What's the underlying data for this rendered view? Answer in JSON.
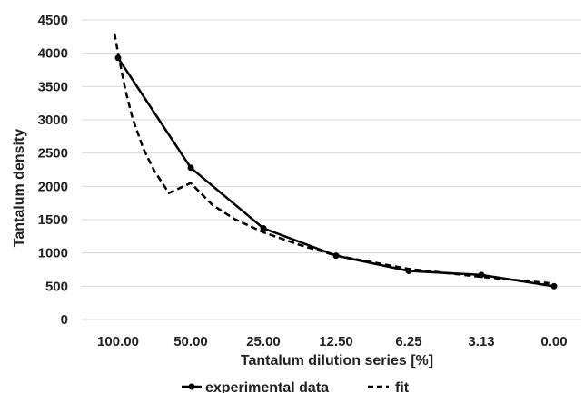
{
  "chart_data": {
    "type": "line",
    "xlabel": "Tantalum dilution series [%]",
    "ylabel": "Tantalum density",
    "categories": [
      "100.00",
      "50.00",
      "25.00",
      "12.50",
      "6.25",
      "3.13",
      "0.00"
    ],
    "ylim": [
      0,
      4500
    ],
    "yticks": [
      0,
      500,
      1000,
      1500,
      2000,
      2500,
      3000,
      3500,
      4000,
      4500
    ],
    "grid": "horizontal",
    "legend": "bottom",
    "series": [
      {
        "name": "experimental data",
        "style": "solid-with-markers",
        "color": "#000000",
        "values": [
          3930,
          2280,
          1370,
          960,
          730,
          670,
          500
        ]
      },
      {
        "name": "fit",
        "style": "dashed",
        "color": "#000000",
        "curve": [
          [
            -0.05,
            4300
          ],
          [
            0.0,
            4000
          ],
          [
            0.1,
            3450
          ],
          [
            0.2,
            3020
          ],
          [
            0.35,
            2560
          ],
          [
            0.5,
            2230
          ],
          [
            0.7,
            1900
          ],
          [
            1.0,
            2050
          ],
          [
            1.3,
            1720
          ],
          [
            1.6,
            1510
          ],
          [
            2.0,
            1310
          ],
          [
            2.5,
            1120
          ],
          [
            3.0,
            960
          ],
          [
            3.5,
            860
          ],
          [
            4.0,
            760
          ],
          [
            4.5,
            700
          ],
          [
            5.0,
            640
          ],
          [
            5.5,
            590
          ],
          [
            6.0,
            540
          ]
        ]
      }
    ]
  }
}
